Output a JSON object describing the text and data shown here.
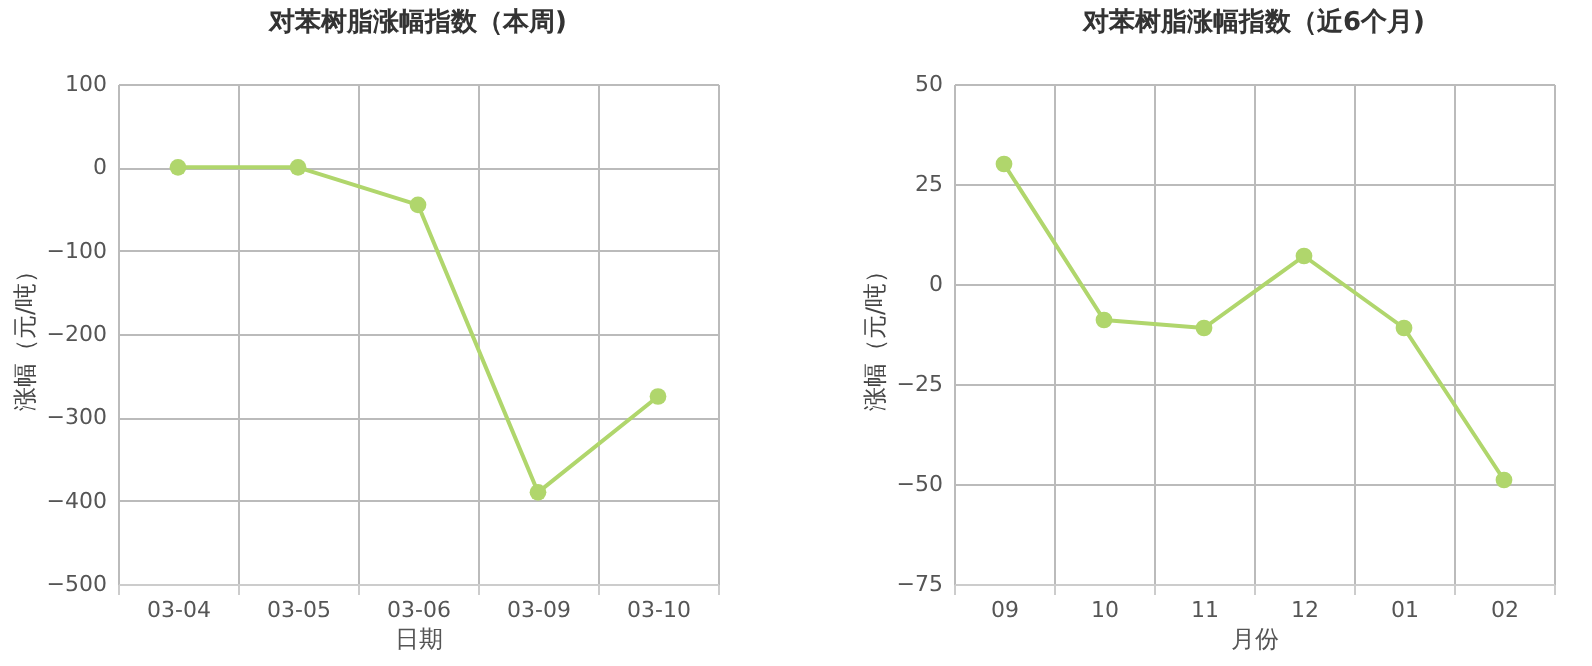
{
  "chart_data": [
    {
      "type": "line",
      "title": "对苯树脂涨幅指数（本周)",
      "xlabel": "日期",
      "ylabel": "涨幅（元/吨）",
      "categories": [
        "03-04",
        "03-05",
        "03-06",
        "03-09",
        "03-10"
      ],
      "series": [
        {
          "color": "#b0d66c",
          "values": [
            0,
            0,
            -45,
            -390,
            -275
          ]
        }
      ],
      "ylim": [
        -500,
        100
      ],
      "yticks": [
        -500,
        -400,
        -300,
        -200,
        -100,
        0,
        100
      ],
      "grid": true,
      "marker": "circle",
      "line_style": "solid"
    },
    {
      "type": "line",
      "title": "对苯树脂涨幅指数（近6个月)",
      "xlabel": "月份",
      "ylabel": "涨幅（元/吨）",
      "categories": [
        "09",
        "10",
        "11",
        "12",
        "01",
        "02"
      ],
      "series": [
        {
          "color": "#b0d66c",
          "values": [
            30,
            -9,
            -11,
            7,
            -11,
            -49
          ]
        }
      ],
      "ylim": [
        -75,
        50
      ],
      "yticks": [
        -75,
        -50,
        -25,
        0,
        25,
        50
      ],
      "grid": true,
      "marker": "circle",
      "line_style": "solid"
    }
  ]
}
